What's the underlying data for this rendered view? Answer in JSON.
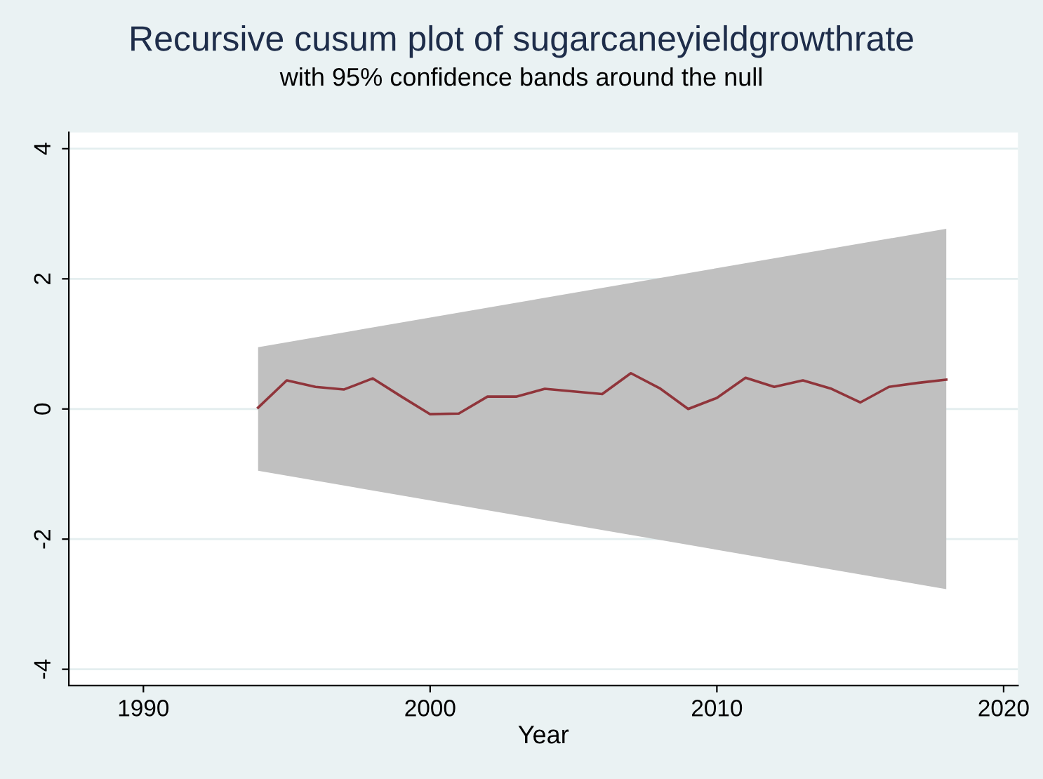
{
  "chart_data": {
    "type": "line",
    "title": "Recursive cusum plot of sugarcaneyieldgrowthrate",
    "subtitle": "with 95% confidence bands around the null",
    "xlabel": "Year",
    "series": [
      {
        "type": "area",
        "x": [
          1994,
          2018
        ],
        "values": [
          null,
          null
        ],
        "lower": [
          -0.95,
          -2.77
        ],
        "upper": [
          0.95,
          2.77
        ],
        "color": "#c0c0c0"
      },
      {
        "x": [
          1994,
          1995,
          1996,
          1997,
          1998,
          1999,
          2000,
          2001,
          2002,
          2003,
          2004,
          2005,
          2006,
          2007,
          2008,
          2009,
          2010,
          2011,
          2012,
          2013,
          2014,
          2015,
          2016,
          2017,
          2018
        ],
        "values": [
          0.02,
          0.44,
          0.34,
          0.3,
          0.47,
          0.19,
          -0.08,
          -0.07,
          0.19,
          0.19,
          0.31,
          0.27,
          0.23,
          0.55,
          0.32,
          0.0,
          0.17,
          0.48,
          0.34,
          0.44,
          0.31,
          0.1,
          0.34,
          0.4,
          0.45
        ],
        "color": "#90353b"
      }
    ],
    "xlim": [
      1987.4,
      2020.5
    ],
    "ylim": [
      -4.25,
      4.25
    ],
    "xticks": [
      1990,
      2000,
      2010,
      2020
    ],
    "yticks": [
      -4,
      -2,
      0,
      2,
      4
    ],
    "grid": "y",
    "legend": false
  }
}
